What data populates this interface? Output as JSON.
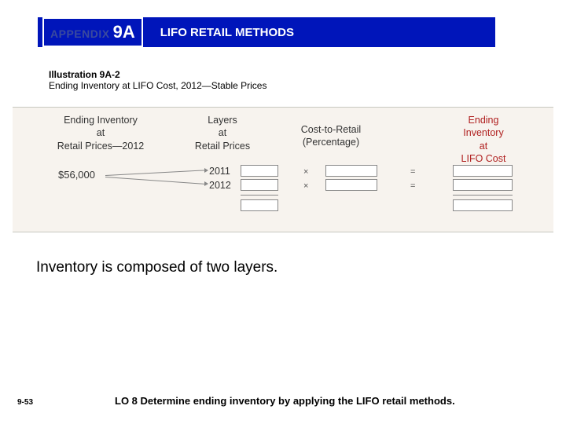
{
  "header": {
    "appendix_word": "APPENDIX",
    "appendix_num": "9A",
    "title": "LIFO RETAIL METHODS",
    "bg_color": "#0015ba"
  },
  "illustration": {
    "title": "Illustration 9A-2",
    "subtitle": "Ending Inventory at LIFO Cost, 2012—Stable Prices"
  },
  "diagram": {
    "bg_color": "#f7f3ee",
    "col1_header": "Ending Inventory\nat\nRetail Prices—2012",
    "col2_header": "Layers\nat\nRetail Prices",
    "col3_header": "Cost-to-Retail\n(Percentage)",
    "col4_header": "Ending\nInventory\nat\nLIFO Cost",
    "col4_color": "#b02020",
    "amount": "$56,000",
    "year1": "2011",
    "year2": "2012",
    "op_mult": "×",
    "op_eq": "="
  },
  "body": {
    "text": "Inventory is composed of two layers."
  },
  "footer": {
    "page": "9-53",
    "lo": "LO 8  Determine ending inventory by applying the LIFO retail methods."
  }
}
